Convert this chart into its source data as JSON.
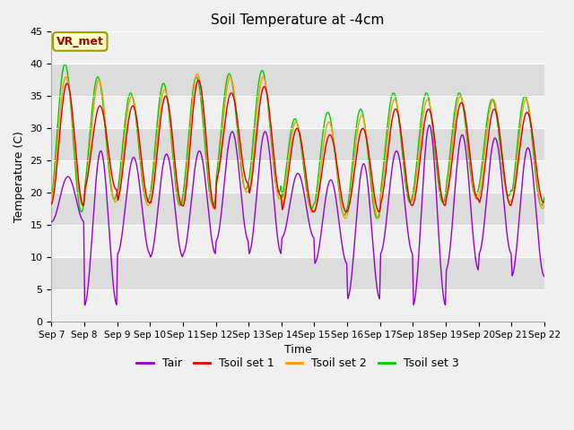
{
  "title": "Soil Temperature at -4cm",
  "xlabel": "Time",
  "ylabel": "Temperature (C)",
  "ylim": [
    0,
    45
  ],
  "yticks": [
    0,
    5,
    10,
    15,
    20,
    25,
    30,
    35,
    40,
    45
  ],
  "colors": {
    "Tair": "#9900cc",
    "Tsoil_set1": "#dd0000",
    "Tsoil_set2": "#ff9900",
    "Tsoil_set3": "#00cc00"
  },
  "legend_labels": [
    "Tair",
    "Tsoil set 1",
    "Tsoil set 2",
    "Tsoil set 3"
  ],
  "annotation_text": "VR_met",
  "annotation_color": "#aa0000",
  "annotation_bg": "#ffffcc",
  "annotation_edge": "#999900",
  "plot_bg_light": "#f0f0f0",
  "plot_bg_dark": "#dcdcdc",
  "xtick_labels": [
    "Sep 7",
    "Sep 8",
    "Sep 9",
    "Sep 10",
    "Sep 11",
    "Sep 12",
    "Sep 13",
    "Sep 14",
    "Sep 15",
    "Sep 16",
    "Sep 17",
    "Sep 18",
    "Sep 19",
    "Sep 20",
    "Sep 21",
    "Sep 22"
  ],
  "line_width": 1.0
}
